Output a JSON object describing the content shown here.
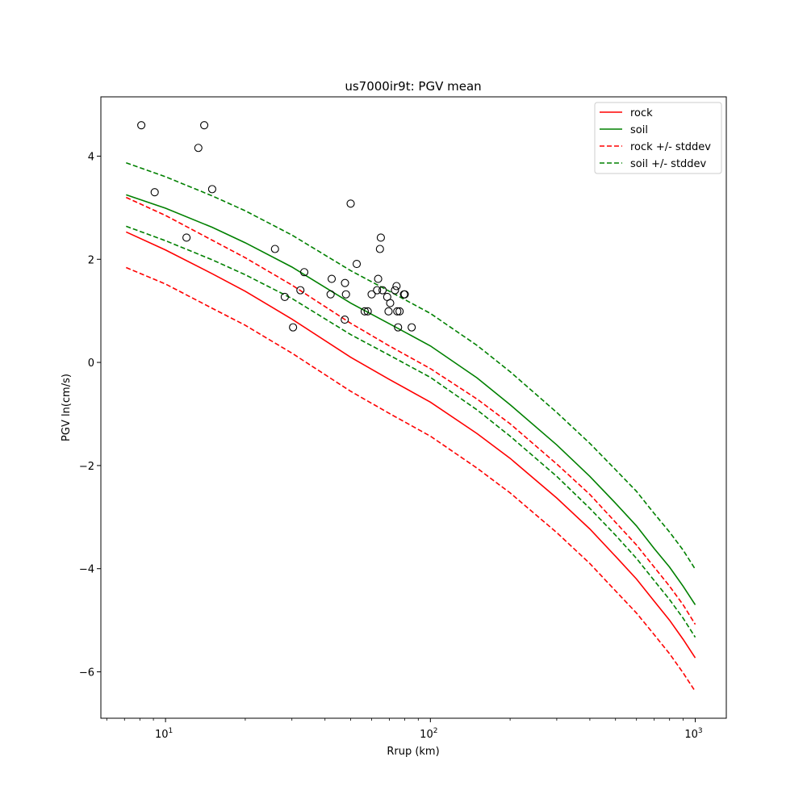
{
  "chart_data": {
    "type": "line",
    "title": "us7000ir9t: PGV mean",
    "xlabel": "Rrup (km)",
    "ylabel": "PGV ln(cm/s)",
    "xscale": "log",
    "xlim": [
      5.7,
      1310
    ],
    "ylim": [
      -6.9,
      5.15
    ],
    "xticks": [
      {
        "value": 10,
        "base": "10",
        "exp": "1"
      },
      {
        "value": 100,
        "base": "10",
        "exp": "2"
      },
      {
        "value": 1000,
        "base": "10",
        "exp": "3"
      }
    ],
    "yticks": [
      {
        "value": -6,
        "label": "−6"
      },
      {
        "value": -4,
        "label": "−4"
      },
      {
        "value": -2,
        "label": "−2"
      },
      {
        "value": 0,
        "label": "0"
      },
      {
        "value": 2,
        "label": "2"
      },
      {
        "value": 4,
        "label": "4"
      }
    ],
    "x": [
      7.1,
      10,
      15,
      20,
      30,
      50,
      70,
      100,
      150,
      200,
      300,
      400,
      500,
      600,
      700,
      800,
      900,
      1000
    ],
    "series": [
      {
        "name": "rock",
        "color": "#ff0000",
        "dash": false,
        "values": [
          2.53,
          2.18,
          1.72,
          1.38,
          0.84,
          0.1,
          -0.33,
          -0.77,
          -1.38,
          -1.86,
          -2.63,
          -3.23,
          -3.76,
          -4.2,
          -4.63,
          -5.0,
          -5.37,
          -5.73
        ]
      },
      {
        "name": "soil",
        "color": "#008000",
        "dash": false,
        "values": [
          3.25,
          2.99,
          2.62,
          2.32,
          1.85,
          1.15,
          0.75,
          0.32,
          -0.3,
          -0.82,
          -1.6,
          -2.21,
          -2.73,
          -3.17,
          -3.61,
          -3.97,
          -4.34,
          -4.7
        ]
      },
      {
        "name": "rock +/- stddev",
        "color": "#ff0000",
        "dash": true,
        "values": [
          3.2,
          2.85,
          2.37,
          2.03,
          1.5,
          0.76,
          0.32,
          -0.12,
          -0.71,
          -1.19,
          -1.97,
          -2.56,
          -3.1,
          -3.54,
          -3.97,
          -4.34,
          -4.7,
          -5.08
        ]
      },
      {
        "name": "rock +/- stddev (lower)",
        "color": "#ff0000",
        "dash": true,
        "values": [
          1.84,
          1.52,
          1.05,
          0.72,
          0.18,
          -0.56,
          -0.99,
          -1.43,
          -2.05,
          -2.53,
          -3.3,
          -3.9,
          -4.43,
          -4.86,
          -5.28,
          -5.65,
          -6.02,
          -6.38
        ]
      },
      {
        "name": "soil +/- stddev",
        "color": "#008000",
        "dash": true,
        "values": [
          3.87,
          3.6,
          3.23,
          2.94,
          2.47,
          1.78,
          1.38,
          0.95,
          0.33,
          -0.18,
          -0.97,
          -1.57,
          -2.08,
          -2.5,
          -2.93,
          -3.29,
          -3.64,
          -4.01
        ]
      },
      {
        "name": "soil +/- stddev (lower)",
        "color": "#008000",
        "dash": true,
        "values": [
          2.64,
          2.36,
          1.99,
          1.7,
          1.24,
          0.54,
          0.14,
          -0.29,
          -0.92,
          -1.43,
          -2.21,
          -2.83,
          -3.35,
          -3.8,
          -4.23,
          -4.6,
          -4.96,
          -5.33
        ]
      }
    ],
    "legend_entries": [
      "rock",
      "soil",
      "rock +/- stddev",
      "soil +/- stddev"
    ],
    "legend_location": "upper right",
    "observations": [
      {
        "x": 8.1,
        "y": 4.6
      },
      {
        "x": 9.1,
        "y": 3.3
      },
      {
        "x": 12.0,
        "y": 2.42
      },
      {
        "x": 13.3,
        "y": 4.16
      },
      {
        "x": 14.0,
        "y": 4.6
      },
      {
        "x": 15.0,
        "y": 3.36
      },
      {
        "x": 25.9,
        "y": 2.2
      },
      {
        "x": 28.2,
        "y": 1.27
      },
      {
        "x": 30.3,
        "y": 0.68
      },
      {
        "x": 32.3,
        "y": 1.4
      },
      {
        "x": 33.4,
        "y": 1.75
      },
      {
        "x": 42.0,
        "y": 1.32
      },
      {
        "x": 42.4,
        "y": 1.62
      },
      {
        "x": 47.5,
        "y": 0.83
      },
      {
        "x": 47.6,
        "y": 1.54
      },
      {
        "x": 48.0,
        "y": 1.32
      },
      {
        "x": 50.0,
        "y": 3.08
      },
      {
        "x": 52.7,
        "y": 1.91
      },
      {
        "x": 56.5,
        "y": 0.99
      },
      {
        "x": 58.0,
        "y": 0.99
      },
      {
        "x": 60.0,
        "y": 1.32
      },
      {
        "x": 62.9,
        "y": 1.4
      },
      {
        "x": 63.5,
        "y": 1.62
      },
      {
        "x": 64.5,
        "y": 2.2
      },
      {
        "x": 65.0,
        "y": 2.42
      },
      {
        "x": 66.0,
        "y": 1.4
      },
      {
        "x": 68.7,
        "y": 1.27
      },
      {
        "x": 69.5,
        "y": 0.99
      },
      {
        "x": 70.5,
        "y": 1.15
      },
      {
        "x": 73.5,
        "y": 1.4
      },
      {
        "x": 74.5,
        "y": 1.48
      },
      {
        "x": 75.0,
        "y": 0.99
      },
      {
        "x": 75.5,
        "y": 0.68
      },
      {
        "x": 76.5,
        "y": 0.99
      },
      {
        "x": 79.5,
        "y": 1.32
      },
      {
        "x": 80.0,
        "y": 1.32
      },
      {
        "x": 85.0,
        "y": 0.68
      }
    ]
  }
}
